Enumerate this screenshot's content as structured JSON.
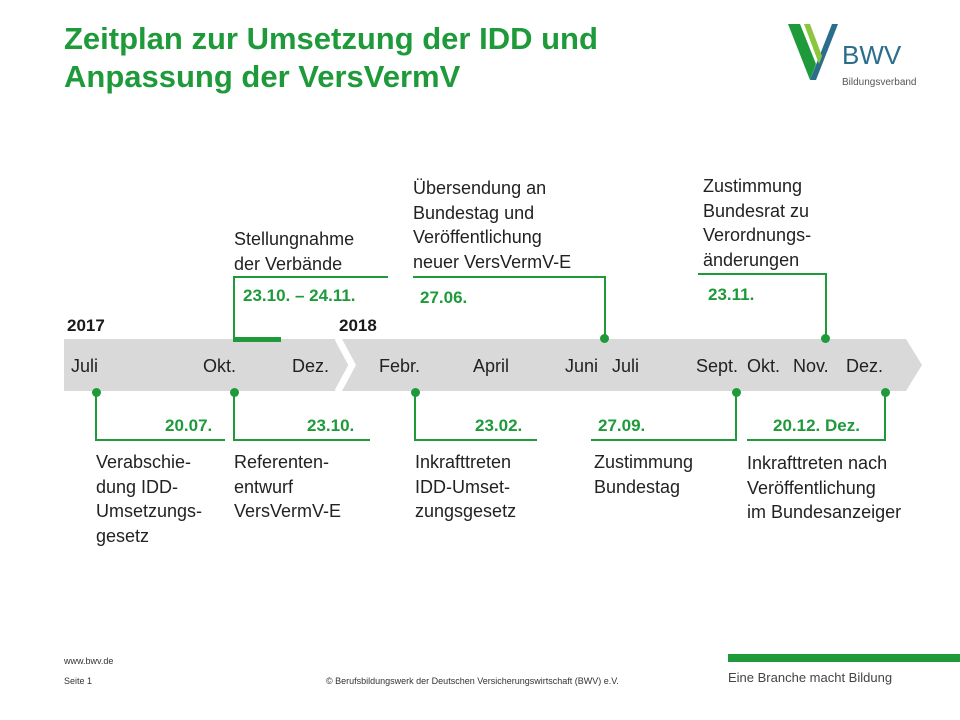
{
  "title": {
    "line1": "Zeitplan zur Umsetzung der IDD und",
    "line2": "Anpassung der VersVermV"
  },
  "logo": {
    "name": "BWV",
    "subtitle": "Bildungsverband"
  },
  "years": {
    "y2017": "2017",
    "y2018": "2018"
  },
  "months": {
    "juli1": "Juli",
    "okt1": "Okt.",
    "dez1": "Dez.",
    "febr": "Febr.",
    "april": "April",
    "juni": "Juni",
    "juli2": "Juli",
    "sept": "Sept.",
    "okt2": "Okt.",
    "nov": "Nov.",
    "dez2": "Dez."
  },
  "events_top": [
    {
      "date": "23.10. – 24.11.",
      "lines": [
        "Stellungnahme",
        "der Verbände"
      ]
    },
    {
      "date": "27.06.",
      "lines": [
        "Übersendung  an",
        "Bundestag und",
        "Veröffentlichung",
        "neuer VersVermV-E"
      ]
    },
    {
      "date": "23.11.",
      "lines": [
        "Zustimmung",
        "Bundesrat zu",
        "Verordnungs-",
        "änderungen"
      ]
    }
  ],
  "events_bottom": [
    {
      "date": "20.07.",
      "lines": [
        "Verabschie-",
        "dung IDD-",
        "Umsetzungs-",
        "gesetz"
      ]
    },
    {
      "date": "23.10.",
      "lines": [
        "Referenten-",
        "entwurf",
        "VersVermV-E"
      ]
    },
    {
      "date": "23.02.",
      "lines": [
        "Inkrafttreten",
        "IDD-Umset-",
        "zungsgesetz"
      ]
    },
    {
      "date": "27.09.",
      "lines": [
        "Zustimmung",
        "Bundestag"
      ]
    },
    {
      "date": "20.12. Dez.",
      "lines": [
        "Inkrafttreten nach",
        "Veröffentlichung",
        "im Bundesanzeiger"
      ]
    }
  ],
  "footer": {
    "url": "www.bwv.de",
    "page": "Seite  1",
    "copyright": "© Berufsbildungswerk der Deutschen Versicherungswirtschaft (BWV) e.V.",
    "tagline": "Eine Branche macht Bildung"
  },
  "colors": {
    "accent": "#1e9a3a",
    "band": "#d9d9d9",
    "logo_blue": "#2b6e8c"
  }
}
